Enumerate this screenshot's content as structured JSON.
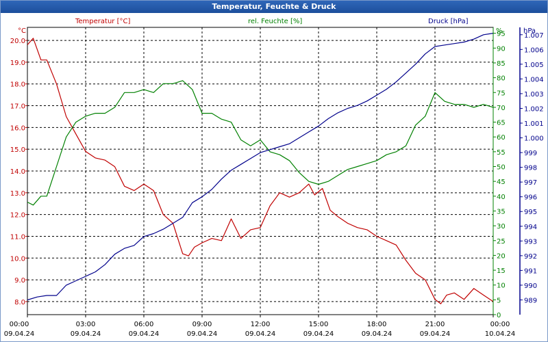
{
  "window": {
    "title": "Temperatur, Feuchte & Druck"
  },
  "chart_data": {
    "type": "line",
    "title": "Temperatur, Feuchte & Druck",
    "x_ticks": [
      {
        "time": "00:00",
        "date": "09.04.24"
      },
      {
        "time": "03:00",
        "date": "09.04.24"
      },
      {
        "time": "06:00",
        "date": "09.04.24"
      },
      {
        "time": "09:00",
        "date": "09.04.24"
      },
      {
        "time": "12:00",
        "date": "09.04.24"
      },
      {
        "time": "15:00",
        "date": "09.04.24"
      },
      {
        "time": "18:00",
        "date": "09.04.24"
      },
      {
        "time": "21:00",
        "date": "09.04.24"
      },
      {
        "time": "00:00",
        "date": "10.04.24"
      }
    ],
    "x_range_hours": [
      0,
      24
    ],
    "grid": true,
    "axes": {
      "temperature": {
        "unit": "°C",
        "range": [
          7.4,
          20.6
        ],
        "ticks": [
          "8.0",
          "9.0",
          "10.0",
          "11.0",
          "12.0",
          "13.0",
          "14.0",
          "15.0",
          "16.0",
          "17.0",
          "18.0",
          "19.0",
          "20.0"
        ],
        "color": "#c00000",
        "side": "left"
      },
      "humidity": {
        "unit": "%",
        "range": [
          0,
          97
        ],
        "ticks": [
          "0",
          "5",
          "10",
          "15",
          "20",
          "25",
          "30",
          "35",
          "40",
          "45",
          "50",
          "55",
          "60",
          "65",
          "70",
          "75",
          "80",
          "85",
          "90",
          "95"
        ],
        "color": "#008000",
        "side": "right-inner"
      },
      "pressure": {
        "unit": "hPa",
        "range": [
          988,
          1007.5
        ],
        "ticks": [
          "989",
          "990",
          "991",
          "992",
          "993",
          "994",
          "995",
          "996",
          "997",
          "998",
          "999",
          "1.000",
          "1.001",
          "1.002",
          "1.003",
          "1.004",
          "1.005",
          "1.006",
          "1.007"
        ],
        "color": "#00008b",
        "side": "right-outer"
      }
    },
    "series": [
      {
        "name": "Temperatur [°C]",
        "axis": "temperature",
        "color": "#c00000",
        "x": [
          0,
          0.3,
          0.7,
          1,
          1.5,
          2,
          2.5,
          3,
          3.5,
          4,
          4.5,
          5,
          5.5,
          6,
          6.5,
          7,
          7.5,
          8,
          8.3,
          8.6,
          9,
          9.5,
          10,
          10.5,
          11,
          11.5,
          12,
          12.5,
          13,
          13.5,
          14,
          14.5,
          14.8,
          15.2,
          15.6,
          16,
          16.5,
          17,
          17.5,
          18,
          18.5,
          19,
          19.5,
          20,
          20.5,
          21,
          21.3,
          21.6,
          22,
          22.5,
          23,
          23.5,
          24
        ],
        "values": [
          19.8,
          20.1,
          19.1,
          19.1,
          18.0,
          16.5,
          15.7,
          14.9,
          14.6,
          14.5,
          14.2,
          13.3,
          13.1,
          13.4,
          13.1,
          12.0,
          11.6,
          10.2,
          10.1,
          10.5,
          10.7,
          10.9,
          10.8,
          11.8,
          10.9,
          11.3,
          11.4,
          12.4,
          13.0,
          12.8,
          13.0,
          13.4,
          12.9,
          13.2,
          12.2,
          11.9,
          11.6,
          11.4,
          11.3,
          11.0,
          10.8,
          10.6,
          9.9,
          9.3,
          9.0,
          8.1,
          7.9,
          8.3,
          8.4,
          8.1,
          8.6,
          8.3,
          8.0
        ]
      },
      {
        "name": "rel. Feuchte [%]",
        "axis": "humidity",
        "color": "#008000",
        "x": [
          0,
          0.3,
          0.7,
          1,
          1.5,
          2,
          2.5,
          3,
          3.5,
          4,
          4.5,
          5,
          5.5,
          6,
          6.5,
          7,
          7.5,
          8,
          8.5,
          9,
          9.5,
          10,
          10.5,
          11,
          11.5,
          12,
          12.5,
          13,
          13.5,
          14,
          14.5,
          15,
          15.5,
          16,
          16.5,
          17,
          17.5,
          18,
          18.5,
          19,
          19.5,
          20,
          20.5,
          21,
          21.5,
          22,
          22.5,
          23,
          23.5,
          24
        ],
        "values": [
          38,
          37,
          40,
          40,
          50,
          60,
          65,
          67,
          68,
          68,
          70,
          75,
          75,
          76,
          75,
          78,
          78,
          79,
          76,
          68,
          68,
          66,
          65,
          59,
          57,
          59,
          55,
          54,
          52,
          48,
          45,
          44,
          45,
          47,
          49,
          50,
          51,
          52,
          54,
          55,
          57,
          64,
          67,
          75,
          72,
          71,
          71,
          70,
          71,
          70
        ]
      },
      {
        "name": "Druck [hPa]",
        "axis": "pressure",
        "color": "#00008b",
        "x": [
          0,
          0.5,
          1,
          1.5,
          2,
          2.5,
          3,
          3.5,
          4,
          4.5,
          5,
          5.5,
          6,
          6.5,
          7,
          7.5,
          8,
          8.5,
          9,
          9.5,
          10,
          10.5,
          11,
          11.5,
          12,
          12.5,
          13,
          13.5,
          14,
          14.5,
          15,
          15.5,
          16,
          16.5,
          17,
          17.5,
          18,
          18.5,
          19,
          19.5,
          20,
          20.5,
          21,
          21.5,
          22,
          22.5,
          23,
          23.5,
          24
        ],
        "values": [
          989,
          989.2,
          989.3,
          989.3,
          990,
          990.3,
          990.6,
          990.9,
          991.4,
          992.1,
          992.5,
          992.7,
          993.3,
          993.5,
          993.8,
          994.2,
          994.6,
          995.6,
          996,
          996.5,
          997.2,
          997.8,
          998.2,
          998.6,
          999,
          999.2,
          999.4,
          999.6,
          1000,
          1000.4,
          1000.8,
          1001.3,
          1001.7,
          1002,
          1002.2,
          1002.5,
          1002.9,
          1003.3,
          1003.8,
          1004.4,
          1005,
          1005.7,
          1006.2,
          1006.3,
          1006.4,
          1006.5,
          1006.7,
          1007,
          1007.1
        ]
      }
    ]
  }
}
